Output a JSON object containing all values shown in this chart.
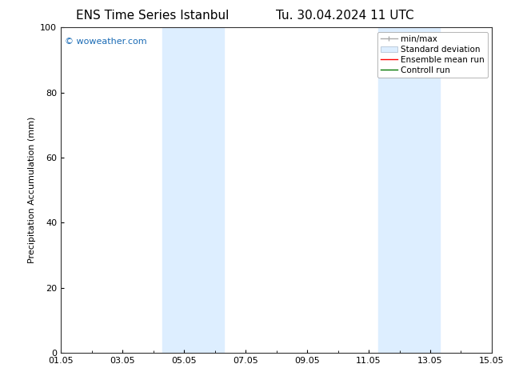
{
  "title_left": "ENS Time Series Istanbul",
  "title_right": "Tu. 30.04.2024 11 UTC",
  "ylabel": "Precipitation Accumulation (mm)",
  "ylim": [
    0,
    100
  ],
  "yticks": [
    0,
    20,
    40,
    60,
    80,
    100
  ],
  "xlim_start": 0,
  "xlim_end": 14,
  "xtick_labels": [
    "01.05",
    "03.05",
    "05.05",
    "07.05",
    "09.05",
    "11.05",
    "13.05",
    "15.05"
  ],
  "xtick_positions": [
    0,
    2,
    4,
    6,
    8,
    10,
    12,
    14
  ],
  "shaded_bands": [
    {
      "x_start": 3.3,
      "x_end": 5.3
    },
    {
      "x_start": 10.3,
      "x_end": 12.3
    }
  ],
  "shade_color": "#ddeeff",
  "watermark_text": "© woweather.com",
  "watermark_color": "#1a6bb5",
  "legend_items": [
    {
      "label": "min/max",
      "color": "#aaaaaa",
      "type": "line_with_caps"
    },
    {
      "label": "Standard deviation",
      "color": "#ddeeff",
      "type": "band"
    },
    {
      "label": "Ensemble mean run",
      "color": "#ff0000",
      "type": "line"
    },
    {
      "label": "Controll run",
      "color": "#007700",
      "type": "line"
    }
  ],
  "title_fontsize": 11,
  "axis_fontsize": 8,
  "tick_fontsize": 8,
  "legend_fontsize": 7.5,
  "watermark_fontsize": 8,
  "bg_color": "#ffffff"
}
